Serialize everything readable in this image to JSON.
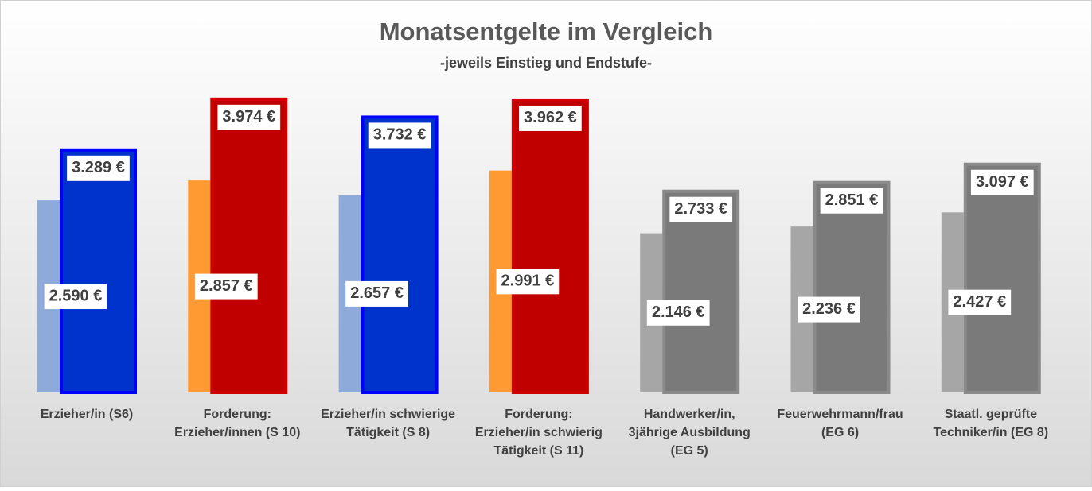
{
  "chart_data": {
    "type": "bar",
    "title": "Monatsentgelte im Vergleich",
    "subtitle": "-jeweils Einstieg und Endstufe-",
    "categories": [
      "Erzieher/in (S6)",
      "Forderung:\nErzieher/innen (S 10)",
      "Erzieher/in schwierige\nTätigkeit (S 8)",
      "Forderung:\nErzieher/in schwierig\nTätigkeit (S 11)",
      "Handwerker/in,\n3jährige Ausbildung\n(EG 5)",
      "Feuerwehrmann/frau\n(EG 6)",
      "Staatl. geprüfte\nTechniker/in (EG 8)"
    ],
    "series": [
      {
        "values": [
          2590,
          2857,
          2657,
          2991,
          2146,
          2236,
          2427
        ],
        "value_labels": [
          "2.590 €",
          "2.857 €",
          "2.657 €",
          "2.991 €",
          "2.146 €",
          "2.236 €",
          "2.427 €"
        ],
        "colors": [
          "#8eaadb",
          "#ff9a33",
          "#8eaadb",
          "#ff9a33",
          "#a6a6a6",
          "#a6a6a6",
          "#a6a6a6"
        ]
      },
      {
        "values": [
          3289,
          3974,
          3732,
          3962,
          2733,
          2851,
          3097
        ],
        "value_labels": [
          "3.289 €",
          "3.974 €",
          "3.732 €",
          "3.962 €",
          "2.733 €",
          "2.851 €",
          "3.097 €"
        ],
        "colors": [
          "#0033cc",
          "#c00000",
          "#0033cc",
          "#c00000",
          "#7a7a7a",
          "#7a7a7a",
          "#7a7a7a"
        ],
        "edge_colors": [
          "#0000ff",
          "#d00000",
          "#0000ff",
          "#d00000",
          "#8a8a8a",
          "#8a8a8a",
          "#8a8a8a"
        ]
      }
    ],
    "ylim": [
      0,
      4000
    ]
  }
}
